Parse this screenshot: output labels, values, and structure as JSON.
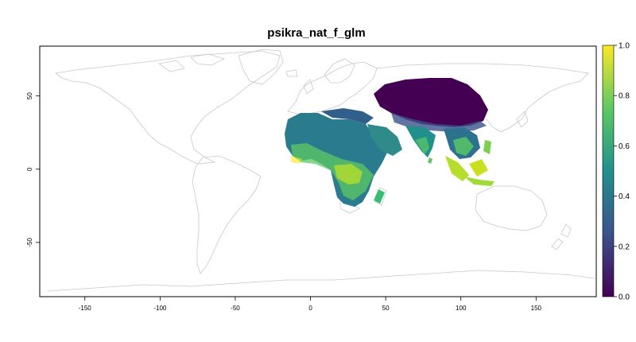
{
  "map": {
    "title": "psikra_nat_f_glm",
    "x_axis": {
      "range": [
        -180,
        190
      ],
      "ticks": [
        -150,
        -100,
        -50,
        0,
        50,
        100,
        150
      ],
      "tick_labels": [
        "-150",
        "-100",
        "-50",
        "0",
        "50",
        "100",
        "150"
      ]
    },
    "y_axis": {
      "range": [
        -87,
        84
      ],
      "ticks": [
        50,
        0,
        -50
      ],
      "tick_labels": [
        "50",
        "0",
        "-50"
      ]
    },
    "land_outline_color": "#c8c8c8",
    "background_color": "#ffffff",
    "value_scale": {
      "palette": "viridis",
      "range": [
        0.0,
        1.0
      ],
      "colors": [
        "#440154",
        "#3b528b",
        "#21908d",
        "#5dc963",
        "#fde725"
      ],
      "ticks": [
        0.0,
        0.2,
        0.4,
        0.6,
        0.8,
        1.0
      ],
      "tick_labels": [
        "0.0",
        "0.2",
        "0.4",
        "0.6",
        "0.8",
        "1.0"
      ]
    }
  }
}
